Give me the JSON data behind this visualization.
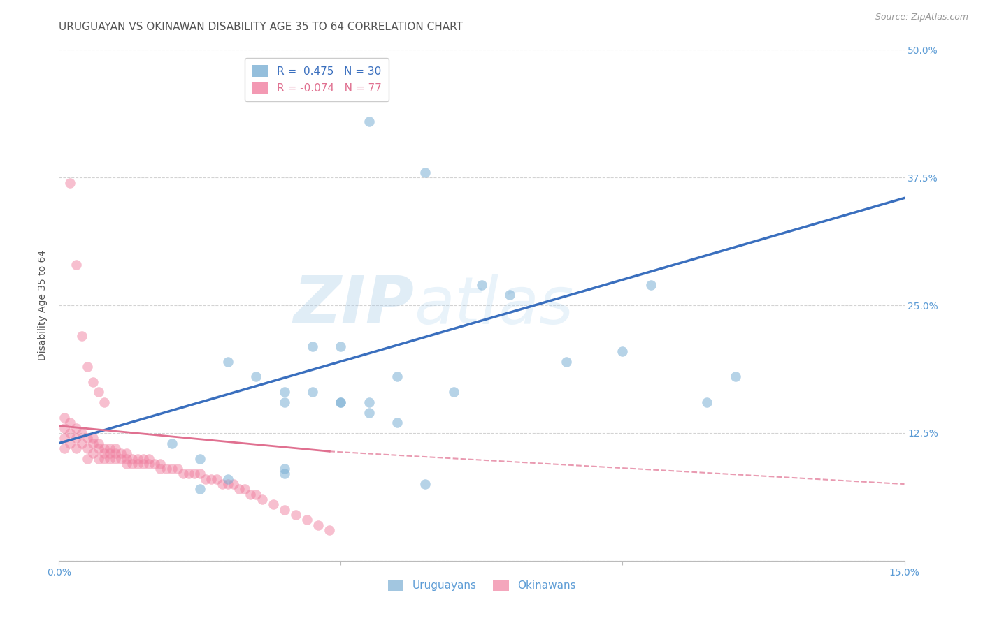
{
  "title": "URUGUAYAN VS OKINAWAN DISABILITY AGE 35 TO 64 CORRELATION CHART",
  "source": "Source: ZipAtlas.com",
  "ylabel_label": "Disability Age 35 to 64",
  "x_min": 0.0,
  "x_max": 0.15,
  "y_min": 0.0,
  "y_max": 0.5,
  "x_ticks": [
    0.0,
    0.05,
    0.1,
    0.15
  ],
  "x_tick_labels": [
    "0.0%",
    "",
    "",
    "15.0%"
  ],
  "y_ticks": [
    0.0,
    0.125,
    0.25,
    0.375,
    0.5
  ],
  "y_tick_labels_right": [
    "",
    "12.5%",
    "25.0%",
    "37.5%",
    "50.0%"
  ],
  "grid_color": "#c8c8c8",
  "background_color": "#ffffff",
  "uruguayan_color": "#7bafd4",
  "okinawan_color": "#f080a0",
  "trend_uruguayan_color": "#3a6fbe",
  "trend_okinawan_color": "#e07090",
  "R_uruguayan": 0.475,
  "N_uruguayan": 30,
  "R_okinawan": -0.074,
  "N_okinawan": 77,
  "uruguayan_x": [
    0.055,
    0.065,
    0.02,
    0.025,
    0.03,
    0.035,
    0.04,
    0.045,
    0.05,
    0.05,
    0.055,
    0.06,
    0.07,
    0.075,
    0.08,
    0.09,
    0.1,
    0.105,
    0.115,
    0.12,
    0.025,
    0.03,
    0.04,
    0.04,
    0.04,
    0.045,
    0.05,
    0.055,
    0.06,
    0.065
  ],
  "uruguayan_y": [
    0.43,
    0.38,
    0.115,
    0.1,
    0.195,
    0.18,
    0.165,
    0.165,
    0.155,
    0.155,
    0.145,
    0.135,
    0.165,
    0.27,
    0.26,
    0.195,
    0.205,
    0.27,
    0.155,
    0.18,
    0.07,
    0.08,
    0.085,
    0.09,
    0.155,
    0.21,
    0.21,
    0.155,
    0.18,
    0.075
  ],
  "okinawan_x": [
    0.001,
    0.001,
    0.001,
    0.001,
    0.002,
    0.002,
    0.002,
    0.003,
    0.003,
    0.003,
    0.004,
    0.004,
    0.005,
    0.005,
    0.005,
    0.006,
    0.006,
    0.006,
    0.007,
    0.007,
    0.007,
    0.008,
    0.008,
    0.008,
    0.009,
    0.009,
    0.009,
    0.01,
    0.01,
    0.01,
    0.011,
    0.011,
    0.012,
    0.012,
    0.012,
    0.013,
    0.013,
    0.014,
    0.014,
    0.015,
    0.015,
    0.016,
    0.016,
    0.017,
    0.018,
    0.018,
    0.019,
    0.02,
    0.021,
    0.022,
    0.023,
    0.024,
    0.025,
    0.026,
    0.027,
    0.028,
    0.029,
    0.03,
    0.031,
    0.032,
    0.033,
    0.034,
    0.035,
    0.036,
    0.038,
    0.04,
    0.042,
    0.044,
    0.046,
    0.048,
    0.002,
    0.003,
    0.004,
    0.005,
    0.006,
    0.007,
    0.008
  ],
  "okinawan_y": [
    0.14,
    0.13,
    0.12,
    0.11,
    0.135,
    0.125,
    0.115,
    0.13,
    0.12,
    0.11,
    0.125,
    0.115,
    0.12,
    0.11,
    0.1,
    0.12,
    0.115,
    0.105,
    0.115,
    0.11,
    0.1,
    0.11,
    0.105,
    0.1,
    0.11,
    0.105,
    0.1,
    0.11,
    0.105,
    0.1,
    0.105,
    0.1,
    0.105,
    0.1,
    0.095,
    0.1,
    0.095,
    0.1,
    0.095,
    0.1,
    0.095,
    0.1,
    0.095,
    0.095,
    0.095,
    0.09,
    0.09,
    0.09,
    0.09,
    0.085,
    0.085,
    0.085,
    0.085,
    0.08,
    0.08,
    0.08,
    0.075,
    0.075,
    0.075,
    0.07,
    0.07,
    0.065,
    0.065,
    0.06,
    0.055,
    0.05,
    0.045,
    0.04,
    0.035,
    0.03,
    0.37,
    0.29,
    0.22,
    0.19,
    0.175,
    0.165,
    0.155
  ],
  "watermark_text": "ZIP",
  "watermark_text2": "atlas",
  "legend_uruguayan": "Uruguayans",
  "legend_okinawan": "Okinawans",
  "title_color": "#555555",
  "tick_label_color": "#5b9bd5",
  "ylabel_color": "#555555",
  "title_fontsize": 11,
  "axis_label_fontsize": 10,
  "tick_fontsize": 10,
  "source_fontsize": 9
}
